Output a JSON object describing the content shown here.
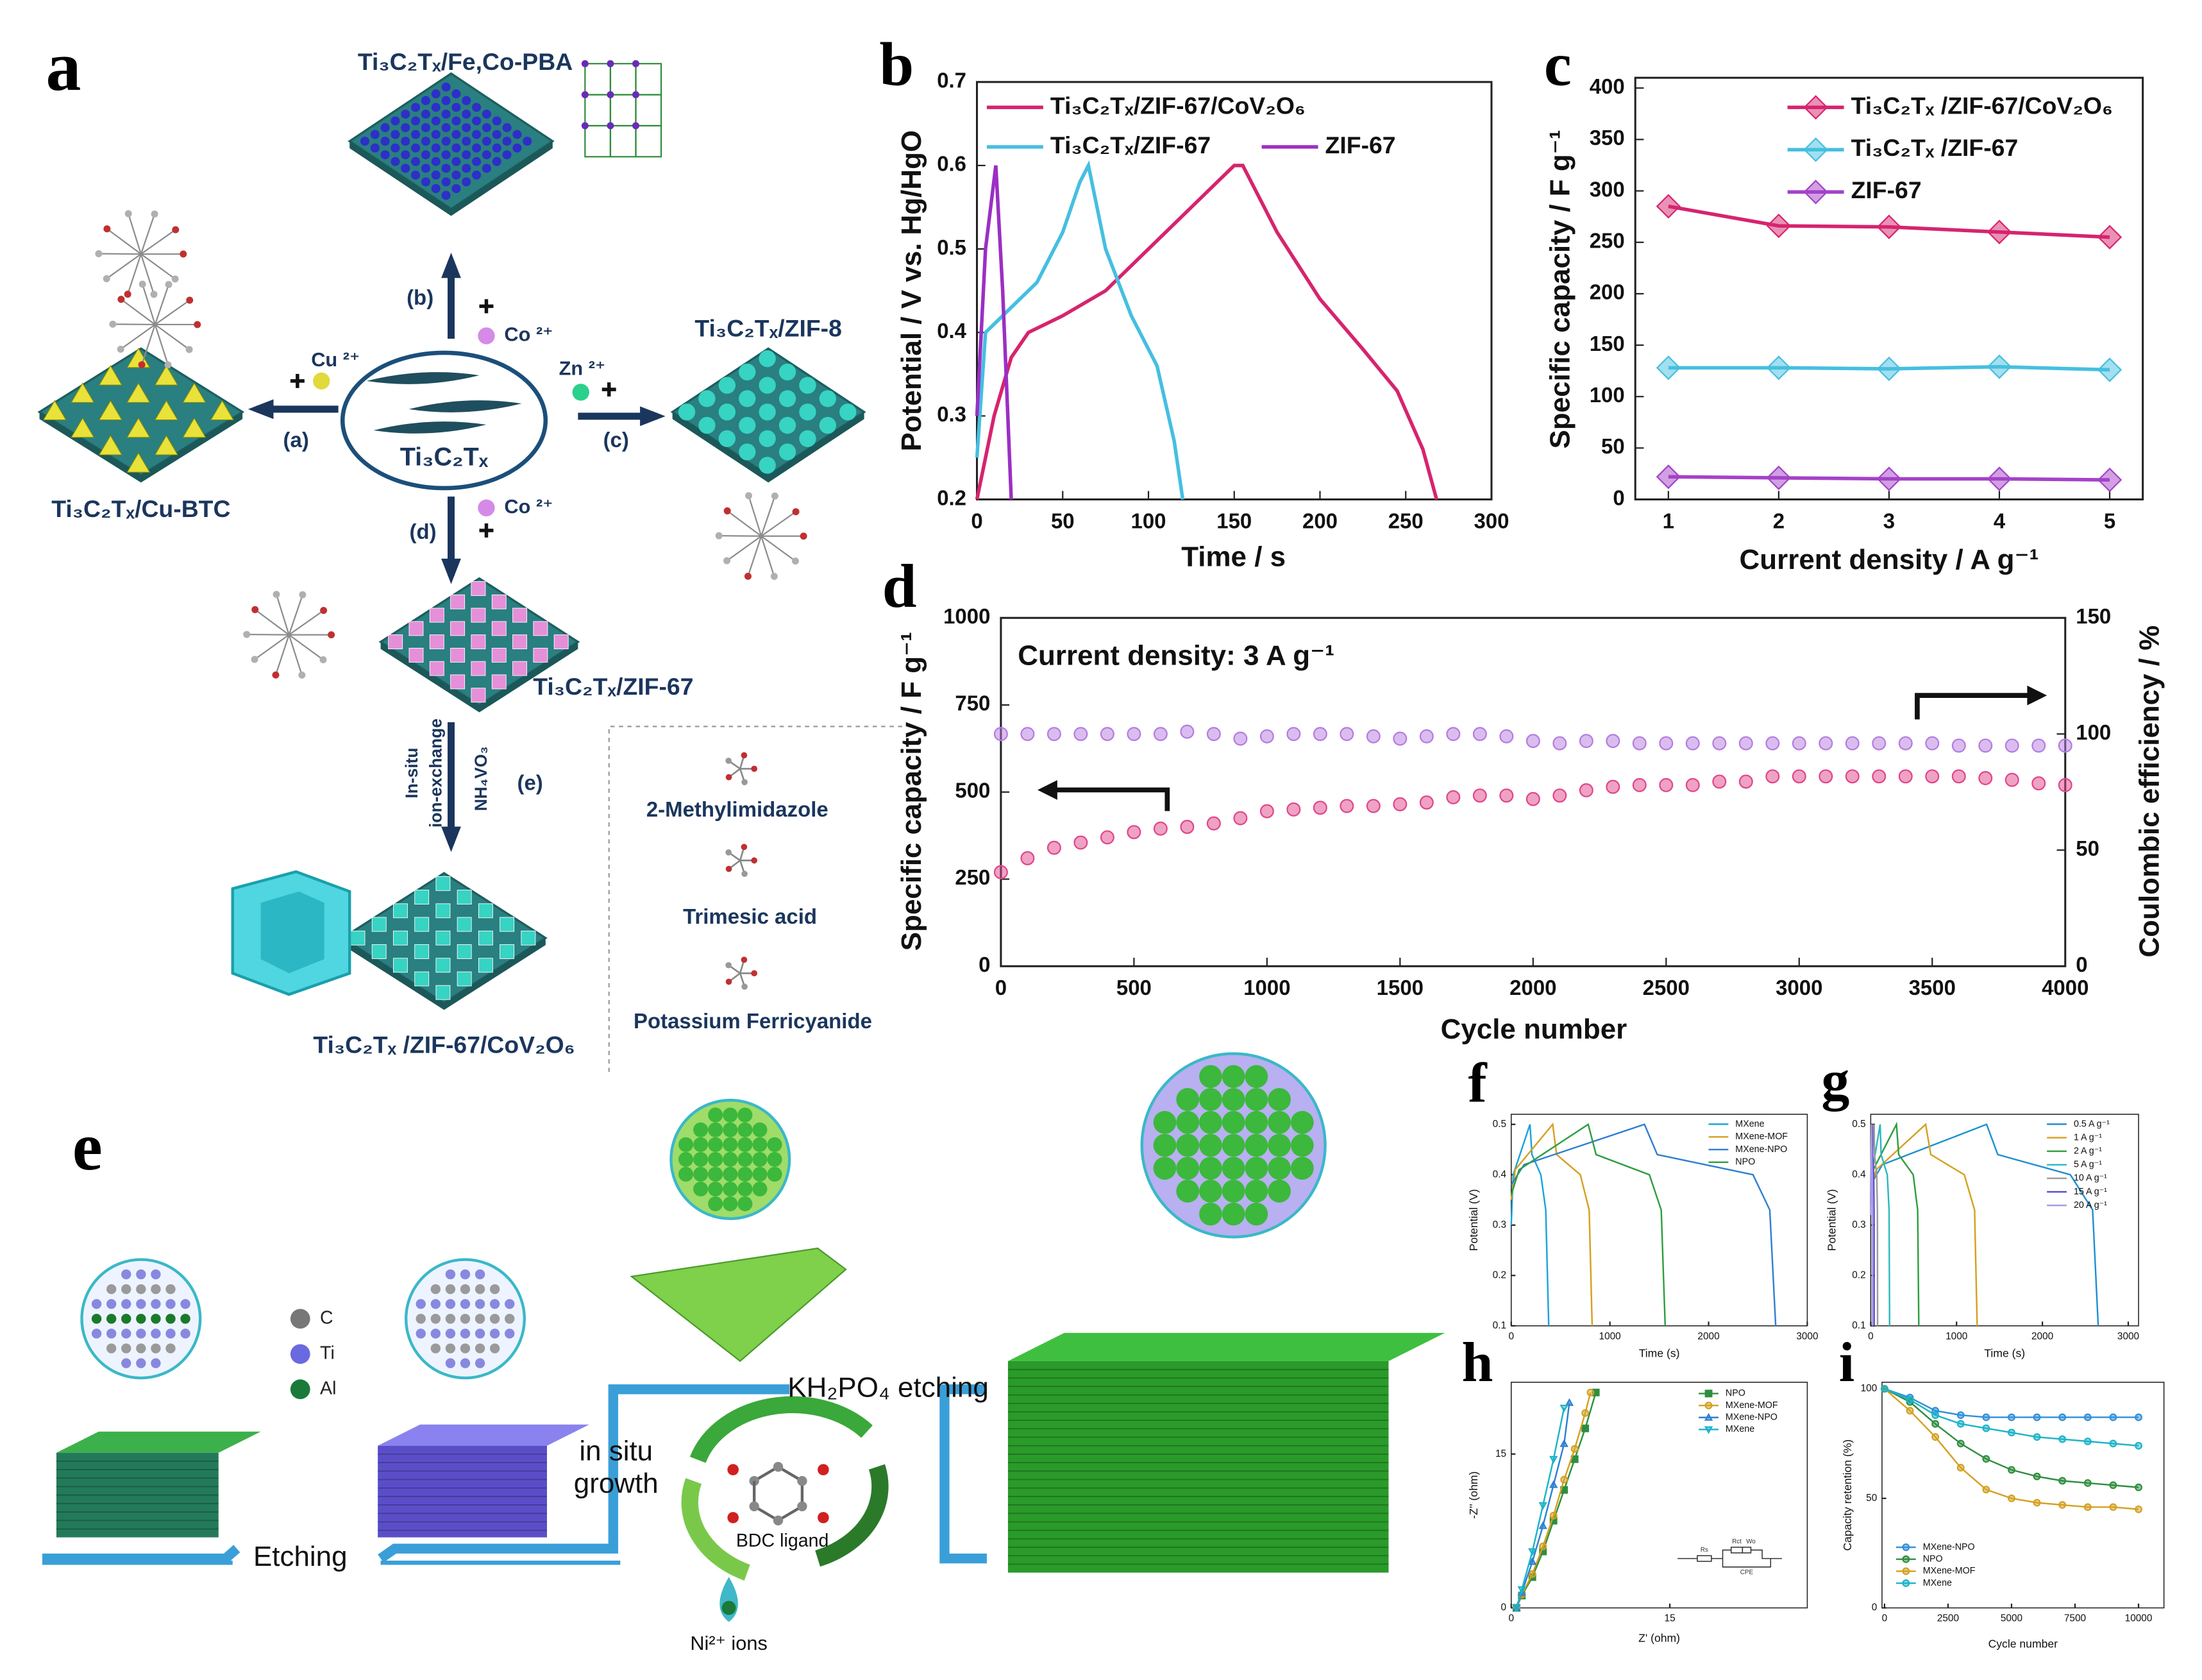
{
  "chart_data": [
    {
      "type": "line",
      "label": "b",
      "xlabel": "Time / s",
      "ylabel": "Potential / V vs. Hg/HgO",
      "xlim": [
        0,
        300
      ],
      "xticks": [
        0,
        50,
        100,
        150,
        200,
        250,
        300
      ],
      "ylim": [
        0.2,
        0.7
      ],
      "yticks": [
        0.2,
        0.3,
        0.4,
        0.5,
        0.6,
        0.7
      ],
      "grid": false,
      "series": [
        {
          "name": "Ti₃C₂Tₓ/ZIF-67/CoV₂O₆",
          "color": "#d6246e",
          "x": [
            0,
            10,
            20,
            30,
            50,
            75,
            100,
            125,
            150,
            155,
            175,
            200,
            225,
            245,
            260,
            268
          ],
          "values": [
            0.2,
            0.3,
            0.37,
            0.4,
            0.42,
            0.45,
            0.5,
            0.55,
            0.6,
            0.6,
            0.52,
            0.44,
            0.38,
            0.33,
            0.26,
            0.2
          ]
        },
        {
          "name": "Ti₃C₂Tₓ/ZIF-67",
          "color": "#45bfe0",
          "x": [
            0,
            5,
            10,
            20,
            35,
            50,
            60,
            65,
            75,
            90,
            105,
            115,
            120
          ],
          "values": [
            0.25,
            0.4,
            0.41,
            0.43,
            0.46,
            0.52,
            0.58,
            0.6,
            0.5,
            0.42,
            0.36,
            0.27,
            0.2
          ]
        },
        {
          "name": "ZIF-67",
          "color": "#9b2fc4",
          "x": [
            0,
            5,
            11,
            15,
            20
          ],
          "values": [
            0.3,
            0.5,
            0.6,
            0.45,
            0.2
          ]
        }
      ]
    },
    {
      "type": "line",
      "label": "c",
      "xlabel": "Current density / A g⁻¹",
      "ylabel": "Specific capacity / F g⁻¹",
      "x": [
        1,
        2,
        3,
        4,
        5
      ],
      "xlim": [
        0.7,
        5.3
      ],
      "xticks": [
        1,
        2,
        3,
        4,
        5
      ],
      "ylim": [
        0,
        410
      ],
      "yticks": [
        0,
        50,
        100,
        150,
        200,
        250,
        300,
        350,
        400
      ],
      "grid": false,
      "series": [
        {
          "name": "Ti₃C₂Tₓ /ZIF-67/CoV₂O₆",
          "color": "#d6246e",
          "marker": "diamond",
          "values": [
            285,
            266,
            265,
            260,
            255
          ]
        },
        {
          "name": "Ti₃C₂Tₓ /ZIF-67",
          "color": "#45bfe0",
          "marker": "diamond",
          "values": [
            128,
            128,
            127,
            129,
            126
          ]
        },
        {
          "name": "ZIF-67",
          "color": "#a442c8",
          "marker": "diamond",
          "values": [
            22,
            21,
            20,
            20,
            19
          ]
        }
      ]
    },
    {
      "type": "scatter",
      "label": "d",
      "xlabel": "Cycle number",
      "ylabel": "Specific capacity / F g⁻¹",
      "y2label": "Coulombic efficiency / %",
      "annotation": "Current density: 3 A g⁻¹",
      "x": [
        0,
        100,
        200,
        300,
        400,
        500,
        600,
        700,
        800,
        900,
        1000,
        1100,
        1200,
        1300,
        1400,
        1500,
        1600,
        1700,
        1800,
        1900,
        2000,
        2100,
        2200,
        2300,
        2400,
        2500,
        2600,
        2700,
        2800,
        2900,
        3000,
        3100,
        3200,
        3300,
        3400,
        3500,
        3600,
        3700,
        3800,
        3900,
        4000
      ],
      "xlim": [
        0,
        4000
      ],
      "xticks": [
        0,
        500,
        1000,
        1500,
        2000,
        2500,
        3000,
        3500,
        4000
      ],
      "ylim": [
        0,
        1000
      ],
      "yticks": [
        0,
        250,
        500,
        750,
        1000
      ],
      "y2lim": [
        0,
        150
      ],
      "y2ticks": [
        0,
        50,
        100,
        150
      ],
      "grid": false,
      "series": [
        {
          "color": "#e0458a",
          "marker": "circle",
          "values": [
            270,
            310,
            340,
            355,
            370,
            385,
            395,
            400,
            410,
            425,
            445,
            450,
            455,
            460,
            460,
            465,
            470,
            485,
            490,
            490,
            480,
            490,
            505,
            515,
            520,
            520,
            520,
            530,
            530,
            545,
            545,
            545,
            545,
            545,
            545,
            545,
            545,
            540,
            535,
            525,
            520
          ]
        },
        {
          "color": "#b57be0",
          "marker": "circle",
          "axis": "y2",
          "values": [
            100,
            100,
            100,
            100,
            100,
            100,
            100,
            101,
            100,
            98,
            99,
            100,
            100,
            100,
            99,
            98,
            99,
            100,
            100,
            99,
            97,
            96,
            97,
            97,
            96,
            96,
            96,
            96,
            96,
            96,
            96,
            96,
            96,
            96,
            96,
            96,
            95,
            95,
            95,
            95,
            95
          ]
        }
      ]
    },
    {
      "type": "line",
      "label": "f",
      "xlabel": "Time (s)",
      "ylabel": "Potential (V)",
      "xlim": [
        0,
        3000
      ],
      "xticks": [
        0,
        1000,
        2000,
        3000
      ],
      "ylim": [
        0.1,
        0.52
      ],
      "yticks": [
        0.1,
        0.2,
        0.3,
        0.4,
        0.5
      ],
      "grid": false,
      "series": [
        {
          "name": "MXene",
          "color": "#1ba3d8",
          "x": [
            0,
            20,
            190,
            210,
            300,
            350,
            380
          ],
          "values": [
            0.3,
            0.4,
            0.5,
            0.44,
            0.4,
            0.33,
            0.1
          ]
        },
        {
          "name": "MXene-MOF",
          "color": "#d4a020",
          "x": [
            0,
            40,
            420,
            460,
            700,
            790,
            820
          ],
          "values": [
            0.35,
            0.41,
            0.5,
            0.44,
            0.4,
            0.33,
            0.1
          ]
        },
        {
          "name": "MXene-NPO",
          "color": "#2f7fd0",
          "x": [
            0,
            130,
            1350,
            1480,
            2450,
            2620,
            2680
          ],
          "values": [
            0.38,
            0.42,
            0.5,
            0.44,
            0.4,
            0.33,
            0.1
          ]
        },
        {
          "name": "NPO",
          "color": "#2e9e3e",
          "x": [
            0,
            80,
            780,
            860,
            1400,
            1520,
            1560
          ],
          "values": [
            0.36,
            0.41,
            0.5,
            0.44,
            0.4,
            0.33,
            0.1
          ]
        }
      ]
    },
    {
      "type": "line",
      "label": "g",
      "xlabel": "Time (s)",
      "ylabel": "Potential (V)",
      "xlim": [
        0,
        3120
      ],
      "xticks": [
        0,
        1000,
        2000,
        3000
      ],
      "ylim": [
        0.1,
        0.52
      ],
      "yticks": [
        0.1,
        0.2,
        0.3,
        0.4,
        0.5
      ],
      "grid": false,
      "series": [
        {
          "name": "0.5 A g⁻¹",
          "color": "#1f8fd0",
          "x": [
            0,
            135,
            1350,
            1480,
            2325,
            2585,
            2650
          ],
          "values": [
            0.38,
            0.42,
            0.5,
            0.44,
            0.4,
            0.33,
            0.1
          ]
        },
        {
          "name": "1 A g⁻¹",
          "color": "#d4a020",
          "x": [
            0,
            64,
            640,
            700,
            1090,
            1210,
            1240
          ],
          "values": [
            0.37,
            0.41,
            0.5,
            0.44,
            0.4,
            0.33,
            0.1
          ]
        },
        {
          "name": "2 A g⁻¹",
          "color": "#2e9e3e",
          "x": [
            0,
            30,
            300,
            326,
            495,
            547,
            560
          ],
          "values": [
            0.36,
            0.41,
            0.5,
            0.44,
            0.4,
            0.33,
            0.1
          ]
        },
        {
          "name": "5 A g⁻¹",
          "color": "#2bb8c0",
          "x": [
            0,
            11,
            110,
            121,
            193,
            214,
            220
          ],
          "values": [
            0.35,
            0.4,
            0.5,
            0.44,
            0.4,
            0.33,
            0.1
          ]
        },
        {
          "name": "10 A g⁻¹",
          "color": "#9a9a9a",
          "x": [
            0,
            4,
            40,
            44,
            70,
            78,
            80
          ],
          "values": [
            0.34,
            0.4,
            0.5,
            0.44,
            0.4,
            0.33,
            0.1
          ]
        },
        {
          "name": "15 A g⁻¹",
          "color": "#5a4fcf",
          "x": [
            0,
            2,
            20,
            22,
            35,
            39,
            40
          ],
          "values": [
            0.33,
            0.4,
            0.5,
            0.44,
            0.4,
            0.33,
            0.1
          ]
        },
        {
          "name": "20 A g⁻¹",
          "color": "#a99be0",
          "x": [
            0,
            1,
            10,
            11,
            18,
            20,
            20
          ],
          "values": [
            0.32,
            0.4,
            0.5,
            0.44,
            0.4,
            0.33,
            0.1
          ]
        }
      ]
    },
    {
      "type": "line",
      "label": "h",
      "xlabel": "Z' (ohm)",
      "ylabel": "-Z'' (ohm)",
      "circuit": [
        "Rs",
        "Rct",
        "Wo",
        "CPE"
      ],
      "xlim": [
        0,
        28
      ],
      "xticks": [
        0,
        15
      ],
      "ylim": [
        0,
        22
      ],
      "yticks": [
        0,
        15
      ],
      "grid": false,
      "series": [
        {
          "name": "NPO",
          "color": "#2e8e3e",
          "marker": "square",
          "x": [
            0.5,
            1,
            2,
            3,
            4,
            5,
            6,
            7,
            8
          ],
          "values": [
            0,
            1.2,
            3,
            5.5,
            8.5,
            11.5,
            14.5,
            17.5,
            21
          ]
        },
        {
          "name": "MXene-MOF",
          "color": "#d4a020",
          "marker": "circle",
          "x": [
            0.5,
            1,
            2,
            3,
            4,
            5,
            6,
            7,
            7.5
          ],
          "values": [
            0,
            1.3,
            3.3,
            6,
            9,
            12.5,
            15.5,
            19,
            21
          ]
        },
        {
          "name": "MXene-NPO",
          "color": "#2f7fd0",
          "marker": "triangle",
          "x": [
            0.5,
            1,
            2,
            3,
            4,
            5,
            5.5
          ],
          "values": [
            0,
            1.5,
            4.5,
            8,
            12,
            16,
            20
          ]
        },
        {
          "name": "MXene",
          "color": "#1bb3c8",
          "marker": "triangle-down",
          "x": [
            0.5,
            1,
            2,
            3,
            4,
            5
          ],
          "values": [
            0,
            1.8,
            5.5,
            10,
            14.5,
            19.5
          ]
        }
      ]
    },
    {
      "type": "line",
      "label": "i",
      "xlabel": "Cycle number",
      "ylabel": "Capacity retention (%)",
      "x": [
        0,
        1000,
        2000,
        3000,
        4000,
        5000,
        6000,
        7000,
        8000,
        9000,
        10000
      ],
      "xlim": [
        -100,
        11000
      ],
      "xticks": [
        0,
        2500,
        5000,
        7500,
        10000
      ],
      "ylim": [
        0,
        103
      ],
      "yticks": [
        0,
        50,
        100
      ],
      "grid": false,
      "series": [
        {
          "name": "MXene-NPO",
          "color": "#2f8fd8",
          "marker": "circle",
          "values": [
            100,
            96,
            90,
            88,
            87,
            87,
            87,
            87,
            87,
            87,
            87
          ]
        },
        {
          "name": "NPO",
          "color": "#2e8e3e",
          "marker": "circle",
          "values": [
            100,
            94,
            84,
            75,
            68,
            63,
            60,
            58,
            57,
            56,
            55
          ]
        },
        {
          "name": "MXene-MOF",
          "color": "#d4a020",
          "marker": "circle",
          "values": [
            100,
            90,
            78,
            64,
            54,
            50,
            48,
            47,
            46,
            46,
            45
          ]
        },
        {
          "name": "MXene",
          "color": "#1bb3c8",
          "marker": "circle",
          "values": [
            100,
            95,
            88,
            84,
            82,
            80,
            78,
            77,
            76,
            75,
            74
          ]
        }
      ]
    }
  ],
  "scheme_a": {
    "label": "a",
    "center": "Ti₃C₂Tₓ",
    "products": [
      "Ti₃C₂Tₓ/Fe,Co-PBA",
      "Ti₃C₂Tₓ/Cu-BTC",
      "Ti₃C₂Tₓ/ZIF-8",
      "Ti₃C₂Tₓ/ZIF-67",
      "Ti₃C₂Tₓ /ZIF-67/CoV₂O₆"
    ],
    "routes": [
      "(a)",
      "(b)",
      "(c)",
      "(d)",
      "(e)"
    ],
    "ions": [
      "Cu ²⁺",
      "Co ²⁺",
      "Zn ²⁺",
      "Co ²⁺"
    ],
    "reagents": [
      "In-situ",
      "ion-exchange",
      "NH₄VO₃"
    ],
    "legend": [
      "2-Methylimidazole",
      "Trimesic acid",
      "Potassium Ferricyanide"
    ]
  },
  "scheme_e": {
    "label": "e",
    "elements": [
      "C",
      "Ti",
      "Al"
    ],
    "steps": [
      "Etching",
      "in situ",
      "growth",
      "KH₂PO₄ etching",
      "BDC ligand",
      "Ni²⁺ ions"
    ]
  }
}
